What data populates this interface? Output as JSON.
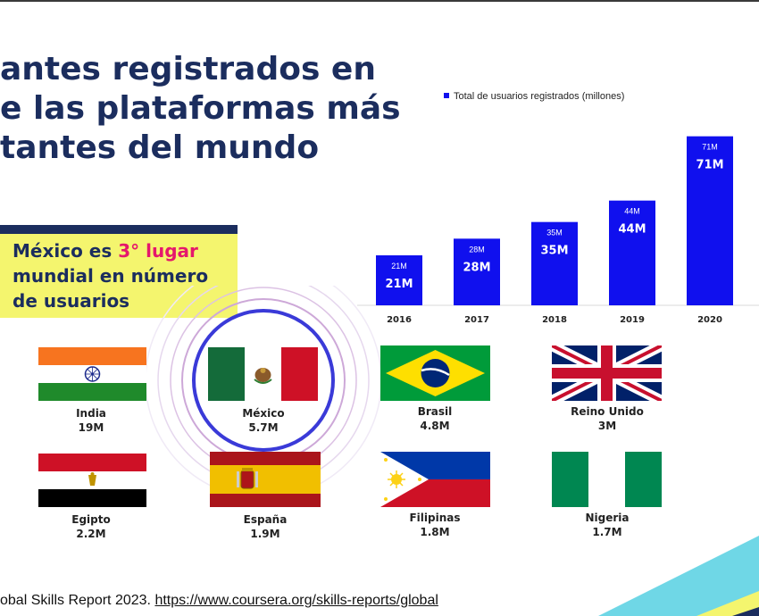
{
  "title_lines": [
    "antes registrados en",
    "e las plataformas más",
    "tantes del mundo"
  ],
  "callout": {
    "prefix": "México es ",
    "highlight": "3° lugar",
    "line2": "mundial en número",
    "line3": "de usuarios"
  },
  "chart_data": {
    "type": "bar",
    "legend": "Total de usuarios registrados (millones)",
    "categories": [
      "2016",
      "2017",
      "2018",
      "2019",
      "2020"
    ],
    "values": [
      21,
      28,
      35,
      44,
      71
    ],
    "labels": [
      "21M",
      "28M",
      "35M",
      "44M",
      "71M"
    ],
    "ylim": [
      0,
      75
    ],
    "bar_color": "#1010ee"
  },
  "countries": [
    {
      "name": "India",
      "users": "19M"
    },
    {
      "name": "México",
      "users": "5.7M"
    },
    {
      "name": "Brasil",
      "users": "4.8M"
    },
    {
      "name": "Reino Unido",
      "users": "3M"
    },
    {
      "name": "Egipto",
      "users": "2.2M"
    },
    {
      "name": "España",
      "users": "1.9M"
    },
    {
      "name": "Filipinas",
      "users": "1.8M"
    },
    {
      "name": "Nigeria",
      "users": "1.7M"
    }
  ],
  "source": {
    "text": "obal Skills Report 2023.",
    "url": "https://www.coursera.org/skills-reports/global"
  },
  "colors": {
    "navy": "#1b2d5e",
    "callout_bg": "#f4f56e",
    "highlight": "#e5176c",
    "ring": "#3a3ad8"
  }
}
